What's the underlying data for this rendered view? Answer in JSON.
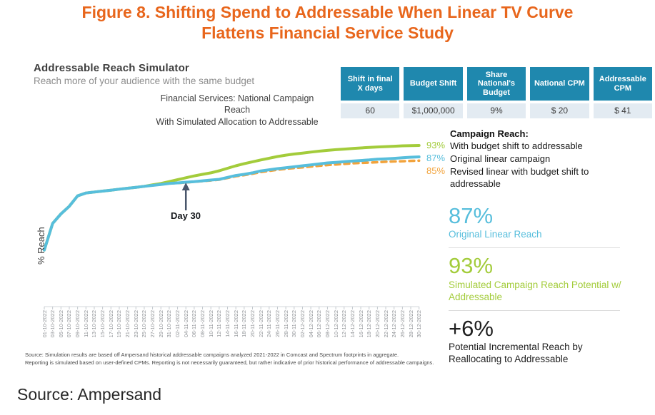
{
  "figure": {
    "title_line1": "Figure 8. Shifting Spend to Addressable When Linear TV Curve",
    "title_line2": "Flattens Financial Service Study"
  },
  "simulator": {
    "title": "Addressable Reach Simulator",
    "subtitle": "Reach more of your audience with the same budget"
  },
  "params_table": {
    "headers": [
      "Shift in final X days",
      "Budget Shift",
      "Share National's Budget",
      "National CPM",
      "Addressable CPM"
    ],
    "values": [
      "60",
      "$1,000,000",
      "9%",
      "$ 20",
      "$ 41"
    ]
  },
  "legend": {
    "title": "Campaign Reach:",
    "items": [
      {
        "pct": "93%",
        "color": "#A3CC3B",
        "label": "With budget shift to addressable"
      },
      {
        "pct": "87%",
        "color": "#57BEDC",
        "label": "Original linear campaign"
      },
      {
        "pct": "85%",
        "color": "#F2A33C",
        "label": "Revised linear with budget shift to addressable"
      }
    ]
  },
  "stats": [
    {
      "value": "87%",
      "label": "Original Linear Reach",
      "color": "#57BEDC"
    },
    {
      "value": "93%",
      "label": "Simulated Campaign Reach Potential w/ Addressable",
      "color": "#A3CC3B"
    },
    {
      "value": "+6%",
      "label": "Potential Incremental Reach by Reallocating to Addressable",
      "color": "#1F1F1F"
    }
  ],
  "footnote": {
    "line1": "Source: Simulation results are based off Ampersand historical addressable campaigns analyzed 2021-2022 in Comcast and Spectrum footprints in aggregate.",
    "line2": "Reporting is simulated based on user-defined CPMs. Reporting is not necessarily guaranteed, but rather indicative of prior historical performance of addressable campaigns."
  },
  "source": "Source: Ampersand",
  "colors": {
    "title_orange": "#E8661C",
    "table_header_teal": "#1F88AE",
    "axis_gray": "#C2C8CD",
    "arrow_slate": "#49566B"
  },
  "chart_data": {
    "type": "line",
    "title_lines": [
      "Financial Services: National Campaign",
      "Reach",
      "With Simulated Allocation to Addressable"
    ],
    "ylabel": "% Reach",
    "grid": false,
    "legend_position": "right",
    "ylim_displayed": [
      8,
      95
    ],
    "x_tick_labels": [
      "01-10-2022",
      "03-10-2022",
      "05-10-2022",
      "07-10-2022",
      "09-10-2022",
      "11-10-2022",
      "13-10-2022",
      "15-10-2022",
      "17-10-2022",
      "19-10-2022",
      "21-10-2022",
      "23-10-2022",
      "25-10-2022",
      "27-10-2022",
      "29-10-2022",
      "31-10-2022",
      "02-11-2022",
      "04-11-2022",
      "06-11-2022",
      "08-11-2022",
      "10-11-2022",
      "12-11-2022",
      "14-11-2022",
      "16-11-2022",
      "18-11-2022",
      "20-11-2022",
      "22-11-2022",
      "24-11-2022",
      "26-11-2022",
      "28-11-2022",
      "30-11-2022",
      "02-12-2022",
      "04-12-2022",
      "06-12-2022",
      "08-12-2022",
      "10-12-2022",
      "12-12-2022",
      "14-12-2022",
      "16-12-2022",
      "18-12-2022",
      "20-12-2022",
      "22-12-2022",
      "24-12-2022",
      "26-12-2022",
      "28-12-2022",
      "30-12-2022"
    ],
    "series": [
      {
        "name": "Original linear campaign",
        "color": "#57BEDC",
        "line_style": "solid",
        "end_label": "87%",
        "values": [
          38,
          52,
          57,
          61,
          66.5,
          68,
          68.5,
          69,
          69.5,
          70,
          70.5,
          71,
          71.5,
          72,
          72.5,
          73,
          73.3,
          73.7,
          74,
          74.4,
          74.8,
          75.2,
          76.2,
          77.2,
          77.8,
          78.6,
          79.6,
          80.2,
          80.8,
          81.3,
          81.8,
          82.3,
          82.8,
          83.3,
          83.8,
          84.1,
          84.5,
          84.8,
          85.1,
          85.4,
          85.8,
          86,
          86.2,
          86.5,
          86.8,
          87
        ]
      },
      {
        "name": "With budget shift to addressable",
        "color": "#A3CC3B",
        "line_style": "solid",
        "end_label": "93%",
        "values": [
          38,
          52,
          57,
          61,
          66.5,
          68,
          68.5,
          69,
          69.5,
          70,
          70.5,
          71,
          71.5,
          72.3,
          73,
          74,
          75,
          76,
          77,
          77.8,
          78.6,
          79.7,
          81,
          82.3,
          83.4,
          84.4,
          85.4,
          86.3,
          87.2,
          87.9,
          88.5,
          89,
          89.5,
          90,
          90.4,
          90.8,
          91.1,
          91.4,
          91.7,
          92,
          92.2,
          92.4,
          92.6,
          92.8,
          92.9,
          93
        ]
      },
      {
        "name": "Revised linear with budget shift to addressable",
        "color": "#F2A33C",
        "line_style": "dashed",
        "end_label": "85%",
        "values": [
          38,
          52,
          57,
          61,
          66.5,
          68,
          68.5,
          69,
          69.5,
          70,
          70.5,
          71,
          71.5,
          72,
          72.5,
          73,
          73.2,
          73.5,
          73.9,
          74.2,
          74.6,
          75,
          75.9,
          76.8,
          77.4,
          78.1,
          79,
          79.6,
          80.2,
          80.7,
          81.1,
          81.5,
          81.9,
          82.3,
          82.7,
          83,
          83.3,
          83.6,
          83.8,
          84,
          84.2,
          84.4,
          84.6,
          84.7,
          84.9,
          85
        ]
      }
    ],
    "annotation": {
      "label": "Day 30",
      "x_tick_index": 17
    }
  }
}
